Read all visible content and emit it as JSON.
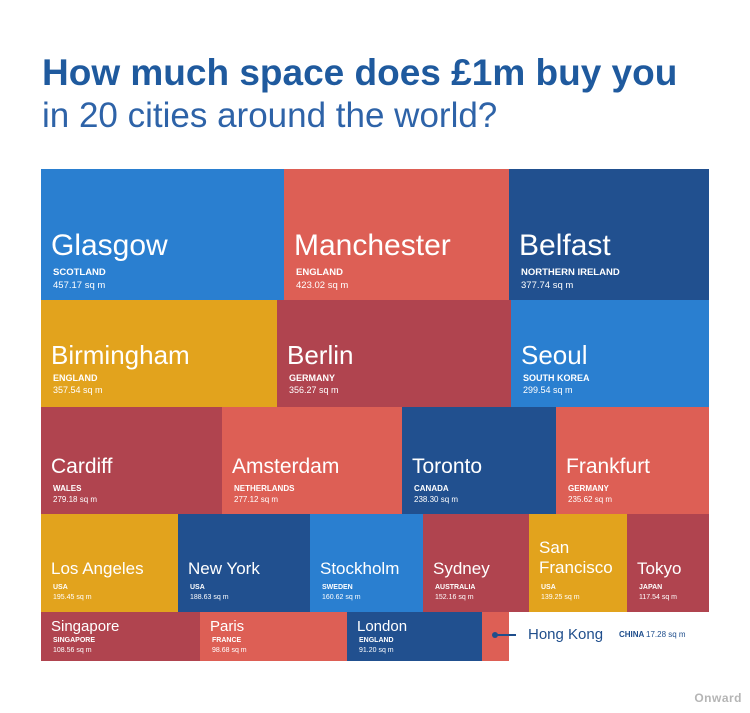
{
  "title": {
    "line1": "How much space does £1m buy you",
    "line2": "in 20 cities around the world?"
  },
  "brand": "Onward",
  "colors": {
    "bright_blue": "#2a7fd0",
    "coral": "#dd5f55",
    "navy": "#21508f",
    "mustard": "#e2a31d",
    "maroon": "#b0444f",
    "title_blue": "#1f5a9e"
  },
  "chart_data": {
    "type": "treemap",
    "unit": "sq m",
    "items": [
      {
        "city": "Glasgow",
        "country": "SCOTLAND",
        "value": 457.17,
        "label": "457.17 sq m",
        "color": "#2a7fd0"
      },
      {
        "city": "Manchester",
        "country": "ENGLAND",
        "value": 423.02,
        "label": "423.02 sq m",
        "color": "#dd5f55"
      },
      {
        "city": "Belfast",
        "country": "NORTHERN IRELAND",
        "value": 377.74,
        "label": "377.74 sq m",
        "color": "#21508f"
      },
      {
        "city": "Birmingham",
        "country": "ENGLAND",
        "value": 357.54,
        "label": "357.54 sq m",
        "color": "#e2a31d"
      },
      {
        "city": "Berlin",
        "country": "GERMANY",
        "value": 356.27,
        "label": "356.27 sq m",
        "color": "#b0444f"
      },
      {
        "city": "Seoul",
        "country": "SOUTH KOREA",
        "value": 299.54,
        "label": "299.54 sq m",
        "color": "#2a7fd0"
      },
      {
        "city": "Cardiff",
        "country": "WALES",
        "value": 279.18,
        "label": "279.18 sq m",
        "color": "#b0444f"
      },
      {
        "city": "Amsterdam",
        "country": "NETHERLANDS",
        "value": 277.12,
        "label": "277.12 sq m",
        "color": "#dd5f55"
      },
      {
        "city": "Toronto",
        "country": "CANADA",
        "value": 238.3,
        "label": "238.30 sq m",
        "color": "#21508f"
      },
      {
        "city": "Frankfurt",
        "country": "GERMANY",
        "value": 235.62,
        "label": "235.62 sq m",
        "color": "#dd5f55"
      },
      {
        "city": "Los Angeles",
        "country": "USA",
        "value": 195.45,
        "label": "195.45 sq m",
        "color": "#e2a31d"
      },
      {
        "city": "New York",
        "country": "USA",
        "value": 188.63,
        "label": "188.63 sq m",
        "color": "#21508f"
      },
      {
        "city": "Stockholm",
        "country": "SWEDEN",
        "value": 160.62,
        "label": "160.62 sq m",
        "color": "#2a7fd0"
      },
      {
        "city": "Sydney",
        "country": "AUSTRALIA",
        "value": 152.16,
        "label": "152.16 sq m",
        "color": "#b0444f"
      },
      {
        "city": "San\nFrancisco",
        "country": "USA",
        "value": 139.25,
        "label": "139.25 sq m",
        "color": "#e2a31d"
      },
      {
        "city": "Tokyo",
        "country": "JAPAN",
        "value": 117.54,
        "label": "117.54 sq m",
        "color": "#b0444f"
      },
      {
        "city": "Singapore",
        "country": "SINGAPORE",
        "value": 108.56,
        "label": "108.56 sq m",
        "color": "#b0444f"
      },
      {
        "city": "Paris",
        "country": "FRANCE",
        "value": 98.68,
        "label": "98.68 sq m",
        "color": "#dd5f55"
      },
      {
        "city": "London",
        "country": "ENGLAND",
        "value": 91.2,
        "label": "91.20 sq m",
        "color": "#21508f"
      },
      {
        "city": "Hong Kong",
        "country": "CHINA",
        "value": 17.28,
        "label": "17.28 sq m",
        "color": "#dd5f55"
      }
    ]
  }
}
